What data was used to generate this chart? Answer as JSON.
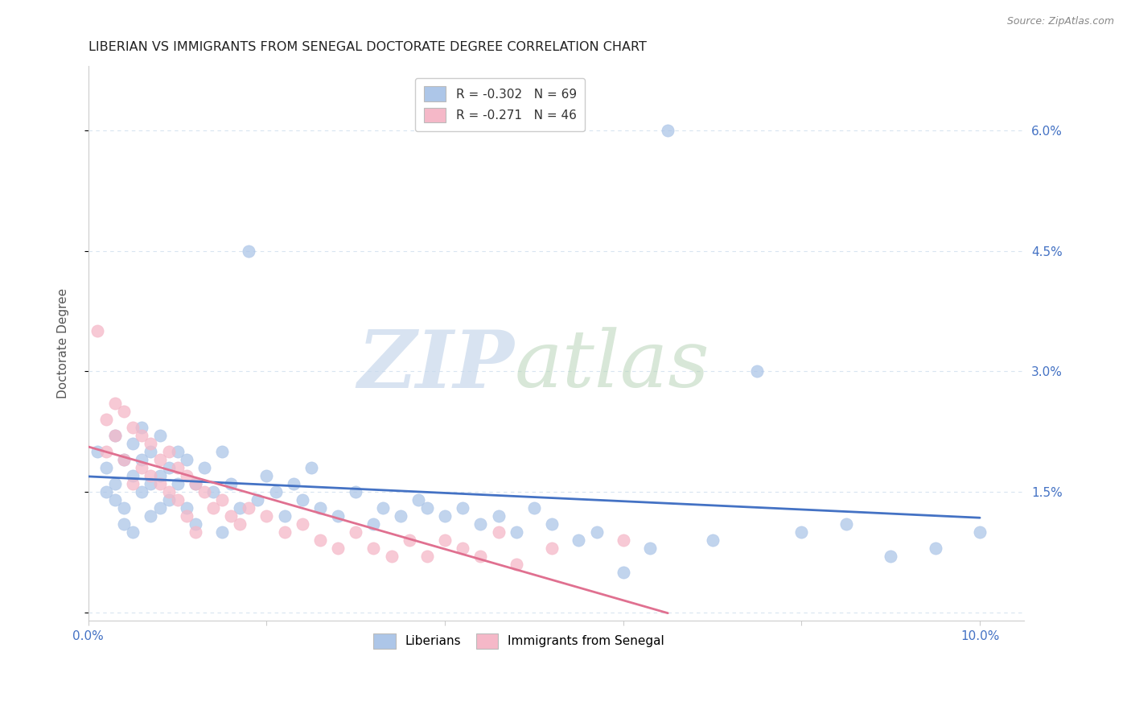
{
  "title": "LIBERIAN VS IMMIGRANTS FROM SENEGAL DOCTORATE DEGREE CORRELATION CHART",
  "source": "Source: ZipAtlas.com",
  "ylabel": "Doctorate Degree",
  "xlim": [
    0.0,
    0.105
  ],
  "ylim": [
    -0.001,
    0.068
  ],
  "background_color": "#ffffff",
  "grid_color": "#d8e4f0",
  "liberian_color": "#adc6e8",
  "senegal_color": "#f5b8c8",
  "liberian_line_color": "#4472c4",
  "senegal_line_color": "#e07090",
  "liberian_x": [
    0.001,
    0.002,
    0.002,
    0.003,
    0.003,
    0.003,
    0.004,
    0.004,
    0.004,
    0.005,
    0.005,
    0.005,
    0.006,
    0.006,
    0.006,
    0.007,
    0.007,
    0.007,
    0.008,
    0.008,
    0.008,
    0.009,
    0.009,
    0.01,
    0.01,
    0.011,
    0.011,
    0.012,
    0.012,
    0.013,
    0.014,
    0.015,
    0.015,
    0.016,
    0.017,
    0.018,
    0.019,
    0.02,
    0.021,
    0.022,
    0.023,
    0.024,
    0.025,
    0.026,
    0.028,
    0.03,
    0.032,
    0.033,
    0.035,
    0.037,
    0.038,
    0.04,
    0.042,
    0.044,
    0.046,
    0.048,
    0.05,
    0.052,
    0.055,
    0.057,
    0.06,
    0.063,
    0.065,
    0.07,
    0.075,
    0.08,
    0.085,
    0.09,
    0.095,
    0.1
  ],
  "liberian_y": [
    0.02,
    0.018,
    0.015,
    0.022,
    0.016,
    0.014,
    0.019,
    0.013,
    0.011,
    0.021,
    0.017,
    0.01,
    0.023,
    0.019,
    0.015,
    0.02,
    0.016,
    0.012,
    0.022,
    0.017,
    0.013,
    0.018,
    0.014,
    0.02,
    0.016,
    0.019,
    0.013,
    0.016,
    0.011,
    0.018,
    0.015,
    0.02,
    0.01,
    0.016,
    0.013,
    0.045,
    0.014,
    0.017,
    0.015,
    0.012,
    0.016,
    0.014,
    0.018,
    0.013,
    0.012,
    0.015,
    0.011,
    0.013,
    0.012,
    0.014,
    0.013,
    0.012,
    0.013,
    0.011,
    0.012,
    0.01,
    0.013,
    0.011,
    0.009,
    0.01,
    0.005,
    0.008,
    0.06,
    0.009,
    0.03,
    0.01,
    0.011,
    0.007,
    0.008,
    0.01
  ],
  "senegal_x": [
    0.001,
    0.002,
    0.002,
    0.003,
    0.003,
    0.004,
    0.004,
    0.005,
    0.005,
    0.006,
    0.006,
    0.007,
    0.007,
    0.008,
    0.008,
    0.009,
    0.009,
    0.01,
    0.01,
    0.011,
    0.011,
    0.012,
    0.012,
    0.013,
    0.014,
    0.015,
    0.016,
    0.017,
    0.018,
    0.02,
    0.022,
    0.024,
    0.026,
    0.028,
    0.03,
    0.032,
    0.034,
    0.036,
    0.038,
    0.04,
    0.042,
    0.044,
    0.046,
    0.048,
    0.052,
    0.06
  ],
  "senegal_y": [
    0.035,
    0.024,
    0.02,
    0.026,
    0.022,
    0.025,
    0.019,
    0.023,
    0.016,
    0.022,
    0.018,
    0.021,
    0.017,
    0.019,
    0.016,
    0.02,
    0.015,
    0.018,
    0.014,
    0.017,
    0.012,
    0.016,
    0.01,
    0.015,
    0.013,
    0.014,
    0.012,
    0.011,
    0.013,
    0.012,
    0.01,
    0.011,
    0.009,
    0.008,
    0.01,
    0.008,
    0.007,
    0.009,
    0.007,
    0.009,
    0.008,
    0.007,
    0.01,
    0.006,
    0.008,
    0.009
  ]
}
